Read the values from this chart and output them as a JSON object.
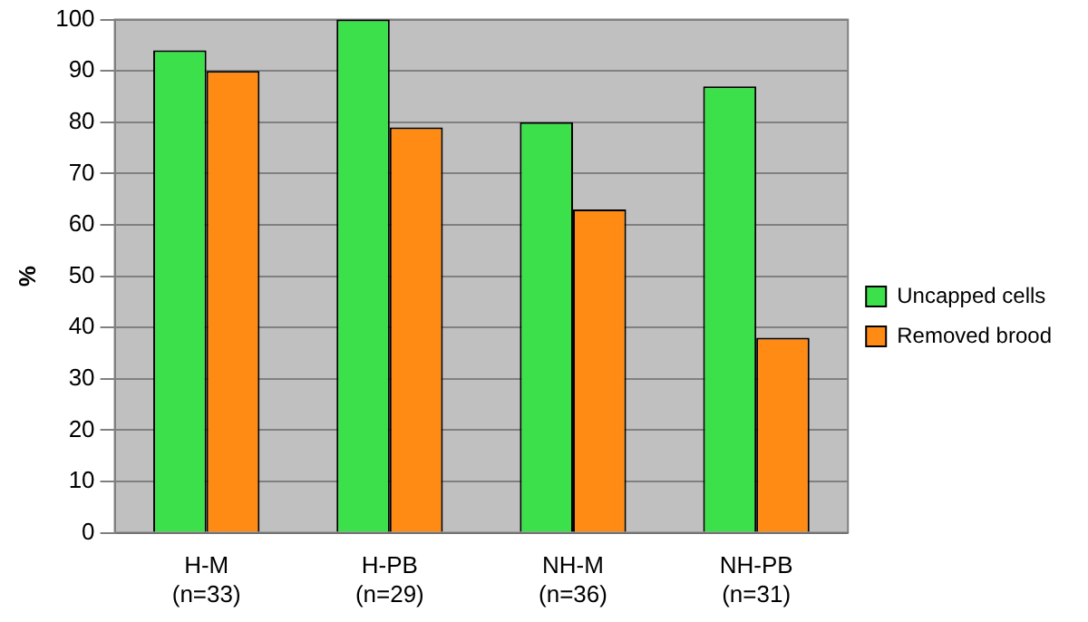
{
  "chart_data": {
    "type": "bar",
    "ylabel": "%",
    "categories": [
      "H-M (n=33)",
      "H-PB (n=29)",
      "NH-M (n=36)",
      "NH-PB (n=31)"
    ],
    "series": [
      {
        "name": "Uncapped cells",
        "color": "#3ce04a",
        "values": [
          94,
          100,
          80,
          87
        ]
      },
      {
        "name": "Removed brood",
        "color": "#ff8a14",
        "values": [
          90,
          79,
          63,
          38
        ]
      }
    ],
    "ylim": [
      0,
      100
    ],
    "yticks": [
      0,
      10,
      20,
      30,
      40,
      50,
      60,
      70,
      80,
      90,
      100
    ],
    "grid": "y",
    "legend": "right"
  }
}
